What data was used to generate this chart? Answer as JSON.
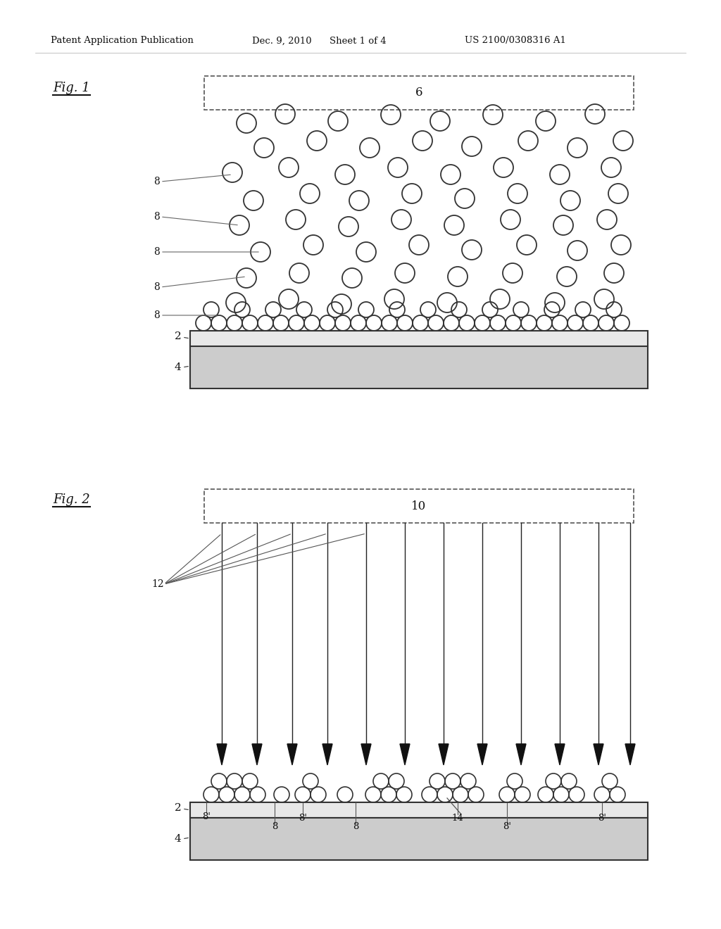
{
  "bg_color": "#ffffff",
  "header_text": "Patent Application Publication",
  "header_date": "Dec. 9, 2010",
  "header_sheet": "Sheet 1 of 4",
  "header_patent": "US 2100/0308316 A1",
  "fig1_label": "Fig. 1",
  "fig2_label": "Fig. 2",
  "fig1_box_label": "6",
  "fig2_box_label": "10",
  "label_2": "2",
  "label_4": "4",
  "label_8": "8",
  "label_8prime": "8'",
  "label_12": "12",
  "label_14": "14",
  "circle_edge": "#333333",
  "rect_fill_light": "#eeeeee",
  "rect_fill_dark": "#cccccc",
  "rect_edge": "#333333",
  "dashed_box_color": "#555555",
  "arrow_color": "#111111",
  "line_color": "#555555"
}
